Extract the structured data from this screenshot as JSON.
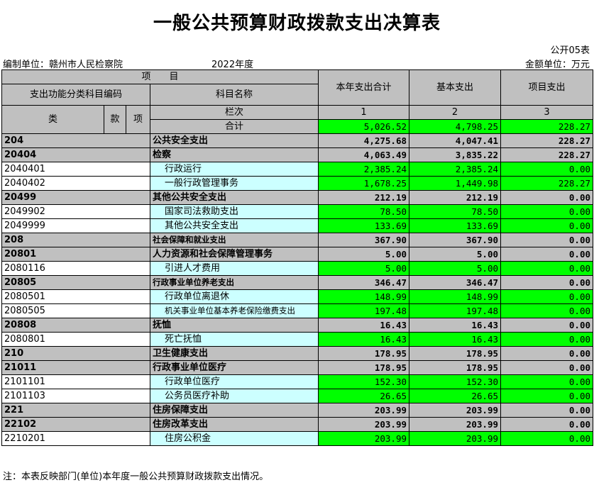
{
  "title": "一般公共预算财政拨款支出决算表",
  "form_no": "公开05表",
  "unit_label": "编制单位：赣州市人民检察院",
  "year": "2022年度",
  "amount_unit": "金额单位：万元",
  "headers": {
    "item": "项　　目",
    "code_group": "支出功能分类科目编码",
    "subject_name": "科目名称",
    "total": "本年支出合计",
    "basic": "基本支出",
    "project": "项目支出",
    "lei": "类",
    "kuan": "款",
    "xiang": "项",
    "column_order": "栏次",
    "col1": "1",
    "col2": "2",
    "col3": "3",
    "sum_label": "合计"
  },
  "sum_row": {
    "total": "5,026.52",
    "basic": "4,798.25",
    "project": "228.27"
  },
  "rows": [
    {
      "code": "204",
      "name": "公共安全支出",
      "total": "4,275.68",
      "basic": "4,047.41",
      "project": "228.27",
      "level": 1
    },
    {
      "code": "20404",
      "name": "检察",
      "total": "4,063.49",
      "basic": "3,835.22",
      "project": "228.27",
      "level": 1
    },
    {
      "code": "2040401",
      "name": "行政运行",
      "total": "2,385.24",
      "basic": "2,385.24",
      "project": "0.00",
      "level": 3
    },
    {
      "code": "2040402",
      "name": "一般行政管理事务",
      "total": "1,678.25",
      "basic": "1,449.98",
      "project": "228.27",
      "level": 3
    },
    {
      "code": "20499",
      "name": "其他公共安全支出",
      "total": "212.19",
      "basic": "212.19",
      "project": "0.00",
      "level": 1
    },
    {
      "code": "2049902",
      "name": "国家司法救助支出",
      "total": "78.50",
      "basic": "78.50",
      "project": "0.00",
      "level": 3
    },
    {
      "code": "2049999",
      "name": "其他公共安全支出",
      "total": "133.69",
      "basic": "133.69",
      "project": "0.00",
      "level": 3
    },
    {
      "code": "208",
      "name": "社会保障和就业支出",
      "total": "367.90",
      "basic": "367.90",
      "project": "0.00",
      "level": 1,
      "small": true
    },
    {
      "code": "20801",
      "name": "人力资源和社会保障管理事务",
      "total": "5.00",
      "basic": "5.00",
      "project": "0.00",
      "level": 1
    },
    {
      "code": "2080116",
      "name": "引进人才费用",
      "total": "5.00",
      "basic": "5.00",
      "project": "0.00",
      "level": 3
    },
    {
      "code": "20805",
      "name": "行政事业单位养老支出",
      "total": "346.47",
      "basic": "346.47",
      "project": "0.00",
      "level": 1,
      "small": true
    },
    {
      "code": "2080501",
      "name": "行政单位离退休",
      "total": "148.99",
      "basic": "148.99",
      "project": "0.00",
      "level": 3
    },
    {
      "code": "2080505",
      "name": "机关事业单位基本养老保险缴费支出",
      "total": "197.48",
      "basic": "197.48",
      "project": "0.00",
      "level": 3,
      "small": true
    },
    {
      "code": "20808",
      "name": "抚恤",
      "total": "16.43",
      "basic": "16.43",
      "project": "0.00",
      "level": 1
    },
    {
      "code": "2080801",
      "name": "死亡抚恤",
      "total": "16.43",
      "basic": "16.43",
      "project": "0.00",
      "level": 3
    },
    {
      "code": "210",
      "name": "卫生健康支出",
      "total": "178.95",
      "basic": "178.95",
      "project": "0.00",
      "level": 1
    },
    {
      "code": "21011",
      "name": "行政事业单位医疗",
      "total": "178.95",
      "basic": "178.95",
      "project": "0.00",
      "level": 1
    },
    {
      "code": "2101101",
      "name": "行政单位医疗",
      "total": "152.30",
      "basic": "152.30",
      "project": "0.00",
      "level": 3
    },
    {
      "code": "2101103",
      "name": "公务员医疗补助",
      "total": "26.65",
      "basic": "26.65",
      "project": "0.00",
      "level": 3
    },
    {
      "code": "221",
      "name": "住房保障支出",
      "total": "203.99",
      "basic": "203.99",
      "project": "0.00",
      "level": 1
    },
    {
      "code": "22102",
      "name": "住房改革支出",
      "total": "203.99",
      "basic": "203.99",
      "project": "0.00",
      "level": 1
    },
    {
      "code": "2210201",
      "name": "住房公积金",
      "total": "203.99",
      "basic": "203.99",
      "project": "0.00",
      "level": 3
    }
  ],
  "footnote": "注：本表反映部门(单位)本年度一般公共预算财政拨款支出情况。"
}
